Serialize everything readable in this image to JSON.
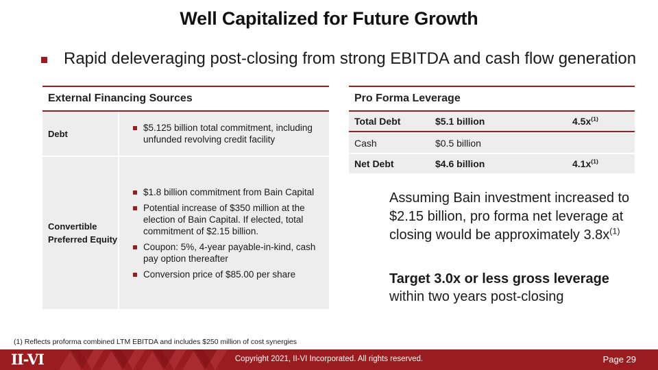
{
  "title": "Well Capitalized for Future Growth",
  "headline_bullet": "Rapid deleveraging post-closing from strong EBITDA and cash flow generation",
  "financing": {
    "header": "External Financing Sources",
    "rows": [
      {
        "label": "Debt",
        "bullets": [
          "$5.125 billion total commitment, including unfunded revolving credit facility"
        ]
      },
      {
        "label": "Convertible Preferred Equity",
        "bullets": [
          "$1.8 billion commitment from Bain Capital",
          "Potential increase of $350 million at the election of Bain Capital.  If elected, total commitment of $2.15 billion.",
          "Coupon: 5%, 4-year payable-in-kind, cash pay option thereafter",
          "Conversion price of $85.00 per share"
        ]
      }
    ]
  },
  "leverage": {
    "header": "Pro Forma Leverage",
    "rows": [
      {
        "label": "Total Debt",
        "amount": "$5.1 billion",
        "multiple": "4.5x",
        "note": "(1)"
      },
      {
        "label": "Cash",
        "amount": "$0.5 billion",
        "multiple": "",
        "note": ""
      },
      {
        "label": "Net Debt",
        "amount": "$4.6 billion",
        "multiple": "4.1x",
        "note": "(1)"
      }
    ]
  },
  "assumption": {
    "text": "Assuming Bain investment increased to $2.15 billion, pro forma net leverage at closing would be approximately 3.8x",
    "note": "(1)"
  },
  "target": {
    "bold": "Target 3.0x or less gross leverage",
    "rest": "within two years post-closing"
  },
  "footnote": "(1) Reflects proforma combined LTM EBITDA and includes $250 million of cost synergies",
  "footer": {
    "logo": "II-VI",
    "copyright": "Copyright 2021, II-VI Incorporated. All rights reserved.",
    "page": "Page 29"
  },
  "colors": {
    "accent": "#9b1c1f",
    "table_fill": "#ededed"
  }
}
